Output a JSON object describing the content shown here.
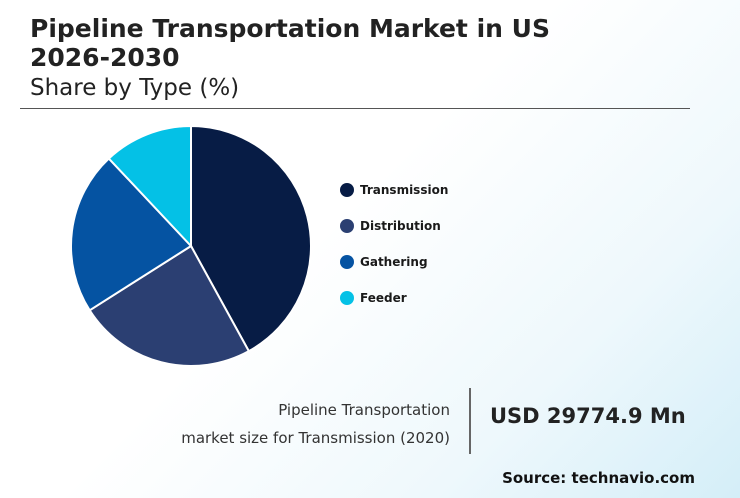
{
  "header": {
    "title": "Pipeline Transportation Market in US 2026-2030",
    "subtitle": "Share by Type (%)"
  },
  "chart_data": {
    "type": "pie",
    "title": "Pipeline Transportation Market in US 2026-2030",
    "subtitle": "Share by Type (%)",
    "categories": [
      "Transmission",
      "Distribution",
      "Gathering",
      "Feeder"
    ],
    "values": [
      42,
      24,
      22,
      12
    ],
    "colors": [
      "#071c45",
      "#2b3f72",
      "#0553a2",
      "#04c1e6"
    ],
    "legend_position": "right"
  },
  "stat": {
    "description_line1": "Pipeline Transportation",
    "description_line2": "market size for Transmission (2020)",
    "value": "USD 29774.9 Mn"
  },
  "source": "Source: technavio.com"
}
